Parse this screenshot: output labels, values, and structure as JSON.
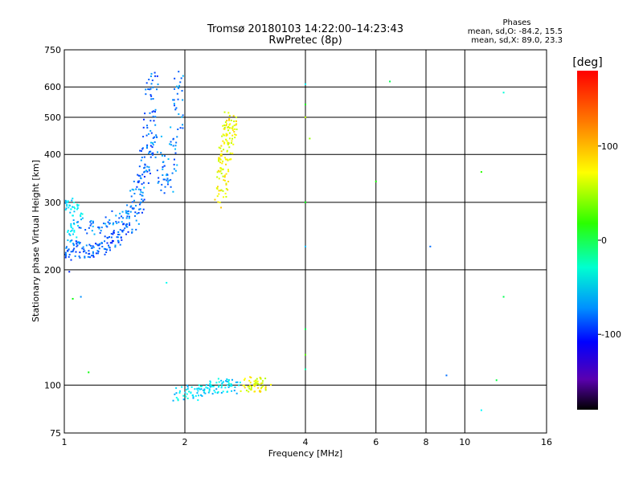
{
  "chart_data": {
    "type": "scatter",
    "title": "Tromsø 20180103 14:22:00–14:23:43",
    "subtitle": "RwPretec (8p)",
    "xlabel": "Frequency [MHz]",
    "ylabel": "Stationary phase Virtual Height [km]",
    "x_scale": "log",
    "y_scale": "log",
    "xlim": [
      1,
      16
    ],
    "ylim": [
      75,
      750
    ],
    "x_ticks": [
      1,
      2,
      4,
      6,
      8,
      10,
      16
    ],
    "x_tick_labels": [
      "1",
      "2",
      "4",
      "6",
      "8",
      "10",
      "16"
    ],
    "y_ticks": [
      75,
      100,
      200,
      300,
      400,
      500,
      600,
      750
    ],
    "y_tick_labels": [
      "75",
      "100",
      "200",
      "300",
      "400",
      "500",
      "600",
      "750"
    ],
    "grid": true,
    "phases_box": {
      "title": "Phases",
      "line1": "mean, sd,O: -84.2, 15.5",
      "line2": "mean, sd,X:  89.0, 23.3"
    },
    "colorbar": {
      "label": "[deg]",
      "ticks": [
        100,
        0,
        -100
      ],
      "tick_labels": [
        "100",
        "0",
        "-100"
      ],
      "range": [
        -180,
        180
      ]
    },
    "clusters": [
      {
        "kind": "O-trace",
        "phase": -100,
        "points": [
          [
            1.0,
            205
          ],
          [
            1.02,
            220
          ],
          [
            1.05,
            230
          ],
          [
            1.1,
            225
          ],
          [
            1.15,
            222
          ],
          [
            1.2,
            225
          ],
          [
            1.25,
            228
          ],
          [
            1.3,
            235
          ],
          [
            1.35,
            240
          ],
          [
            1.4,
            250
          ],
          [
            1.45,
            260
          ],
          [
            1.5,
            280
          ],
          [
            1.55,
            310
          ],
          [
            1.6,
            360
          ],
          [
            1.62,
            420
          ],
          [
            1.64,
            500
          ],
          [
            1.65,
            600
          ],
          [
            1.66,
            640
          ]
        ]
      },
      {
        "kind": "O-trace-spread",
        "phase": -90,
        "points": [
          [
            1.1,
            260
          ],
          [
            1.2,
            255
          ],
          [
            1.3,
            270
          ],
          [
            1.4,
            280
          ],
          [
            1.5,
            300
          ],
          [
            1.55,
            340
          ],
          [
            1.6,
            400
          ],
          [
            1.7,
            450
          ],
          [
            1.75,
            350
          ],
          [
            1.8,
            330
          ],
          [
            1.85,
            380
          ],
          [
            1.9,
            460
          ],
          [
            1.93,
            560
          ],
          [
            1.95,
            640
          ]
        ]
      },
      {
        "kind": "O-trace-low",
        "phase": -60,
        "points": [
          [
            1.0,
            280
          ],
          [
            1.03,
            300
          ],
          [
            1.06,
            290
          ],
          [
            1.08,
            270
          ],
          [
            1.0,
            250
          ],
          [
            1.05,
            240
          ]
        ]
      },
      {
        "kind": "X-trace",
        "phase": 100,
        "points": [
          [
            2.45,
            300
          ],
          [
            2.48,
            330
          ],
          [
            2.5,
            360
          ],
          [
            2.52,
            390
          ],
          [
            2.55,
            420
          ],
          [
            2.58,
            460
          ],
          [
            2.6,
            500
          ],
          [
            2.62,
            480
          ],
          [
            2.55,
            440
          ],
          [
            2.5,
            400
          ],
          [
            2.45,
            340
          ]
        ]
      },
      {
        "kind": "E-layer",
        "phase": -60,
        "points": [
          [
            1.9,
            95
          ],
          [
            2.0,
            96
          ],
          [
            2.1,
            95
          ],
          [
            2.2,
            97
          ],
          [
            2.3,
            98
          ],
          [
            2.4,
            99
          ],
          [
            2.5,
            100
          ],
          [
            2.6,
            99
          ],
          [
            2.7,
            98
          ]
        ]
      },
      {
        "kind": "E-layer-X",
        "phase": 100,
        "points": [
          [
            2.8,
            99
          ],
          [
            2.9,
            100
          ],
          [
            3.0,
            101
          ],
          [
            3.1,
            100
          ],
          [
            3.2,
            99
          ]
        ]
      },
      {
        "kind": "scattered",
        "phase": 0,
        "points": [
          [
            4.0,
            610
          ],
          [
            4.0,
            540
          ],
          [
            4.0,
            500
          ],
          [
            4.1,
            440
          ],
          [
            4.0,
            300
          ],
          [
            4.0,
            230
          ],
          [
            4.0,
            140
          ],
          [
            4.0,
            120
          ],
          [
            4.0,
            110
          ],
          [
            6.0,
            340
          ],
          [
            6.5,
            620
          ],
          [
            8.2,
            230
          ],
          [
            11.0,
            360
          ],
          [
            12.5,
            580
          ],
          [
            12.5,
            170
          ],
          [
            9.0,
            106
          ],
          [
            12.0,
            103
          ],
          [
            11.0,
            86
          ],
          [
            1.1,
            170
          ],
          [
            1.05,
            168
          ],
          [
            1.15,
            108
          ],
          [
            1.8,
            185
          ]
        ]
      }
    ]
  }
}
